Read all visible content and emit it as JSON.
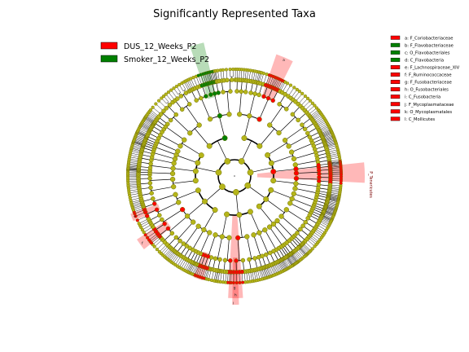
{
  "chart_data": {
    "type": "cladogram",
    "title": "Significantly Represented Taxa",
    "legend": [
      {
        "name": "DUS_12_Weeks_P2",
        "color": "#ff0000"
      },
      {
        "name": "Smoker_12_Weeks_P2",
        "color": "#008000"
      }
    ],
    "taxa": [
      {
        "label": "a: F_Coriobacteriaceae",
        "group": "DUS_12_Weeks_P2"
      },
      {
        "label": "b: F_Flavobacteriaceae",
        "group": "Smoker_12_Weeks_P2"
      },
      {
        "label": "c: O_Flavobacteriales",
        "group": "Smoker_12_Weeks_P2"
      },
      {
        "label": "d: C_Flavobacteria",
        "group": "Smoker_12_Weeks_P2"
      },
      {
        "label": "e: F_Lachnospiraceae_XIV",
        "group": "DUS_12_Weeks_P2"
      },
      {
        "label": "f: F_Ruminococcaceae",
        "group": "DUS_12_Weeks_P2"
      },
      {
        "label": "g: F_Fusobacteriaceae",
        "group": "DUS_12_Weeks_P2"
      },
      {
        "label": "h: O_Fusobacteriales",
        "group": "DUS_12_Weeks_P2"
      },
      {
        "label": "i: C_Fusobacteria",
        "group": "DUS_12_Weeks_P2"
      },
      {
        "label": "j: F_Mycoplasmataceae",
        "group": "DUS_12_Weeks_P2"
      },
      {
        "label": "k: O_Mycoplasmatales",
        "group": "DUS_12_Weeks_P2"
      },
      {
        "label": "l: C_Mollicutes",
        "group": "DUS_12_Weeks_P2"
      }
    ],
    "clade_label_letters": [
      "a",
      "e",
      "f",
      "g",
      "h",
      "i"
    ],
    "phylum_labels": [
      "P_Tenericutes"
    ],
    "colors": {
      "dus": "#ff0000",
      "smoker": "#008000",
      "node": "#b5b51a",
      "node_edge": "#6e6e00"
    }
  }
}
